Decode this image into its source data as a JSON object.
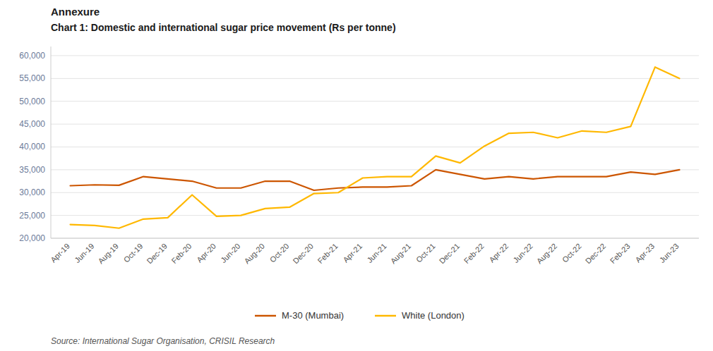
{
  "chart_data": {
    "type": "line",
    "title": "Annexure",
    "subtitle": "Chart 1: Domestic and international sugar price movement (Rs per tonne)",
    "annotations": [
      "Source: International Sugar Organisation, CRISIL Research"
    ],
    "categories": [
      "Apr-19",
      "Jun-19",
      "Aug-19",
      "Oct-19",
      "Dec-19",
      "Feb-20",
      "Apr-20",
      "Jun-20",
      "Aug-20",
      "Oct-20",
      "Dec-20",
      "Feb-21",
      "Apr-21",
      "Jun-21",
      "Aug-21",
      "Oct-21",
      "Dec-21",
      "Feb-22",
      "Apr-22",
      "Jun-22",
      "Aug-22",
      "Oct-22",
      "Dec-22",
      "Feb-23",
      "Apr-23",
      "Jun-23"
    ],
    "series": [
      {
        "name": "M-30 (Mumbai)",
        "color": "#CC5500",
        "values": [
          31500,
          31700,
          31600,
          33500,
          33000,
          32500,
          31000,
          31000,
          32500,
          32500,
          30500,
          31000,
          31200,
          31200,
          31500,
          35000,
          34000,
          33000,
          33500,
          33000,
          33500,
          33500,
          33500,
          34500,
          34000,
          35000
        ]
      },
      {
        "name": "White (London)",
        "color": "#FFB800",
        "values": [
          23000,
          22800,
          22200,
          24200,
          24500,
          29500,
          24800,
          25000,
          26500,
          26800,
          29800,
          30000,
          33200,
          33500,
          33500,
          38000,
          36500,
          40200,
          43000,
          43200,
          42000,
          43500,
          43200,
          44500,
          57500,
          55000
        ]
      }
    ],
    "ylim": [
      20000,
      62000
    ],
    "yticks": [
      {
        "value": 20000,
        "label": "20,000"
      },
      {
        "value": 25000,
        "label": "25,000"
      },
      {
        "value": 30000,
        "label": "30,000"
      },
      {
        "value": 35000,
        "label": "35,000"
      },
      {
        "value": 40000,
        "label": "40,000"
      },
      {
        "value": 45000,
        "label": "45,000"
      },
      {
        "value": 50000,
        "label": "50,000"
      },
      {
        "value": 55000,
        "label": "55,000"
      },
      {
        "value": 60000,
        "label": "60,000"
      }
    ],
    "grid": true,
    "legend": "bottom"
  }
}
